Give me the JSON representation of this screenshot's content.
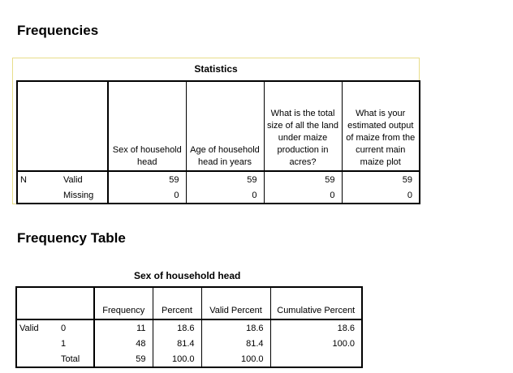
{
  "headings": {
    "frequencies": "Frequencies",
    "frequency_table": "Frequency Table"
  },
  "statistics": {
    "title": "Statistics",
    "columns": [
      "Sex of household head",
      "Age of household head in years",
      "What is the total size of all the land under maize production in acres?",
      "What is your estimated output of maize from the current main maize plot"
    ],
    "row_group": "N",
    "rows": [
      {
        "label": "Valid",
        "values": [
          "59",
          "59",
          "59",
          "59"
        ]
      },
      {
        "label": "Missing",
        "values": [
          "0",
          "0",
          "0",
          "0"
        ]
      }
    ]
  },
  "frequency_table": {
    "title": "Sex of household head",
    "columns": [
      "Frequency",
      "Percent",
      "Valid Percent",
      "Cumulative Percent"
    ],
    "row_group": "Valid",
    "rows": [
      {
        "label": "0",
        "values": [
          "11",
          "18.6",
          "18.6",
          "18.6"
        ]
      },
      {
        "label": "1",
        "values": [
          "48",
          "81.4",
          "81.4",
          "100.0"
        ]
      },
      {
        "label": "Total",
        "values": [
          "59",
          "100.0",
          "100.0",
          ""
        ]
      }
    ]
  }
}
